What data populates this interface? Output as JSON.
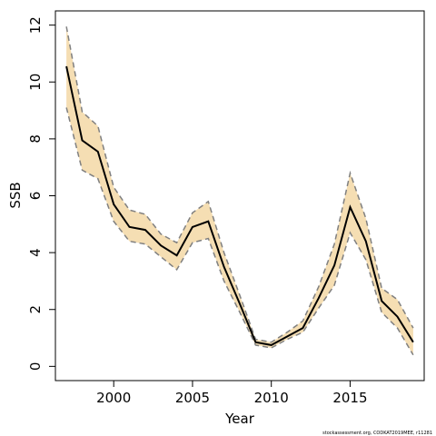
{
  "chart_data": {
    "type": "line",
    "title": "",
    "xlabel": "Year",
    "ylabel": "SSB",
    "xlim": [
      1996.3,
      2019.7
    ],
    "ylim": [
      -0.5,
      12.5
    ],
    "xticks": [
      2000,
      2005,
      2010,
      2015
    ],
    "yticks": [
      0,
      2,
      4,
      6,
      8,
      10,
      12
    ],
    "grid": false,
    "legend": "none",
    "x": [
      1997,
      1998,
      1999,
      2000,
      2001,
      2002,
      2003,
      2004,
      2005,
      2006,
      2007,
      2008,
      2009,
      2010,
      2011,
      2012,
      2013,
      2014,
      2015,
      2016,
      2017,
      2018,
      2019
    ],
    "series": [
      {
        "role": "estimate",
        "values": [
          10.55,
          7.95,
          7.55,
          5.7,
          4.9,
          4.8,
          4.25,
          3.9,
          4.9,
          5.1,
          3.5,
          2.2,
          0.85,
          0.75,
          1.05,
          1.35,
          2.4,
          3.55,
          5.6,
          4.4,
          2.3,
          1.75,
          0.85
        ]
      },
      {
        "role": "upper",
        "values": [
          11.95,
          8.95,
          8.45,
          6.3,
          5.5,
          5.35,
          4.65,
          4.35,
          5.4,
          5.8,
          4.0,
          2.5,
          0.95,
          0.85,
          1.2,
          1.6,
          2.8,
          4.3,
          6.8,
          5.2,
          2.75,
          2.35,
          1.35
        ]
      },
      {
        "role": "lower",
        "values": [
          9.1,
          6.9,
          6.6,
          5.1,
          4.4,
          4.3,
          3.85,
          3.4,
          4.35,
          4.5,
          3.0,
          1.9,
          0.75,
          0.65,
          0.95,
          1.2,
          2.05,
          2.85,
          4.7,
          3.75,
          1.9,
          1.35,
          0.4
        ]
      }
    ]
  },
  "colors": {
    "band": "#f5deb3",
    "estimate_line": "#000000",
    "bound_line": "#808080"
  },
  "footnote": "stockassessment.org, CODKAT2019MEE, r11281"
}
